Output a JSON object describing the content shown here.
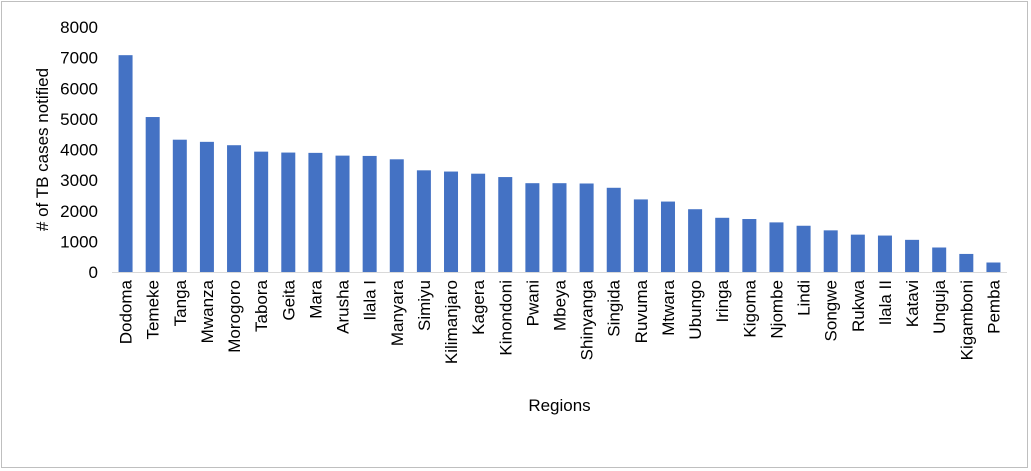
{
  "chart_data": {
    "type": "bar",
    "title": "",
    "xlabel": "Regions",
    "ylabel": "# of TB cases notified",
    "ylim": [
      0,
      8000
    ],
    "yticks": [
      0,
      1000,
      2000,
      3000,
      4000,
      5000,
      6000,
      7000,
      8000
    ],
    "grid": false,
    "legend": "none",
    "bar_color": "#4472c4",
    "categories": [
      "Dodoma",
      "Temeke",
      "Tanga",
      "Mwanza",
      "Morogoro",
      "Tabora",
      "Geita",
      "Mara",
      "Arusha",
      "Ilala I",
      "Manyara",
      "Simiyu",
      "Kilimanjaro",
      "Kagera",
      "Kinondoni",
      "Pwani",
      "Mbeya",
      "Shinyanga",
      "Singida",
      "Ruvuma",
      "Mtwara",
      "Ubungo",
      "Iringa",
      "Kigoma",
      "Njombe",
      "Lindi",
      "Songwe",
      "Rukwa",
      "Ilala II",
      "Katavi",
      "Unguja",
      "Kigamboni",
      "Pemba"
    ],
    "values": [
      7080,
      5060,
      4320,
      4250,
      4140,
      3930,
      3900,
      3890,
      3800,
      3790,
      3680,
      3320,
      3280,
      3210,
      3100,
      2900,
      2900,
      2890,
      2750,
      2370,
      2300,
      2050,
      1770,
      1730,
      1620,
      1510,
      1360,
      1220,
      1190,
      1050,
      800,
      590,
      310
    ]
  }
}
